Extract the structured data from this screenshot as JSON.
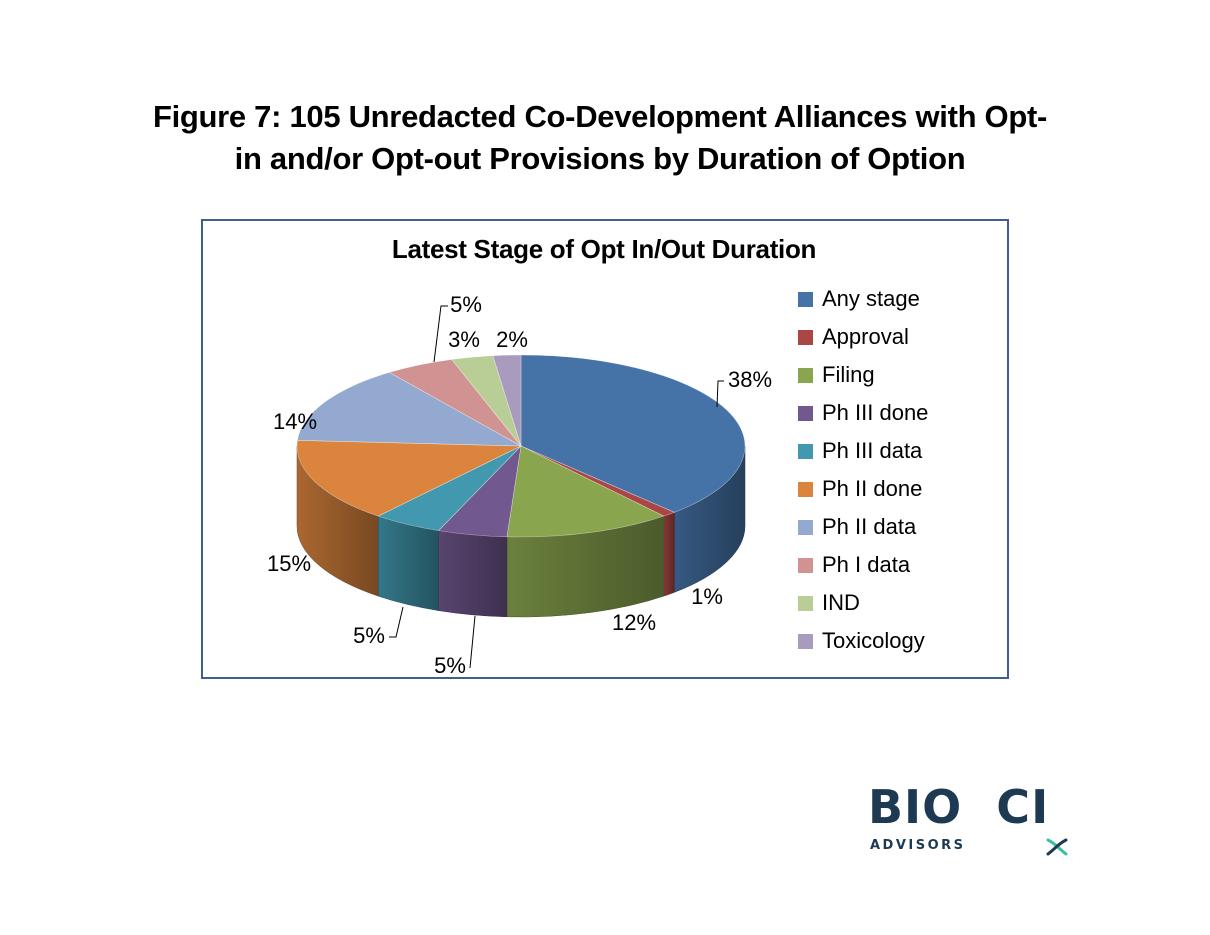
{
  "figure_title": {
    "line1": "Figure 7:  105 Unredacted Co-Development Alliances with Opt-",
    "line2": "in and/or Opt-out Provisions by Duration of Option"
  },
  "chart_data": {
    "type": "pie",
    "style": "3d-pie",
    "title": "Latest Stage of Opt In/Out Duration",
    "legend_position": "right",
    "categories": [
      "Any stage",
      "Approval",
      "Filing",
      "Ph III done",
      "Ph III data",
      "Ph II done",
      "Ph II data",
      "Ph I data",
      "IND",
      "Toxicology"
    ],
    "values": [
      38,
      1,
      12,
      5,
      5,
      15,
      14,
      5,
      3,
      2
    ],
    "labels": [
      "38%",
      "1%",
      "12%",
      "5%",
      "5%",
      "15%",
      "14%",
      "5%",
      "3%",
      "2%"
    ],
    "unit": "%",
    "colors": [
      "#4572A7",
      "#AA4643",
      "#89A54E",
      "#71588F",
      "#4198AF",
      "#DB843D",
      "#93A9CF",
      "#D19392",
      "#B9CD96",
      "#A99BBD"
    ]
  },
  "logo": {
    "main": "BIO  CI",
    "sub": "ADVISORS",
    "colors": {
      "text": "#1d3a52",
      "helix": "#3fbf9f"
    }
  }
}
